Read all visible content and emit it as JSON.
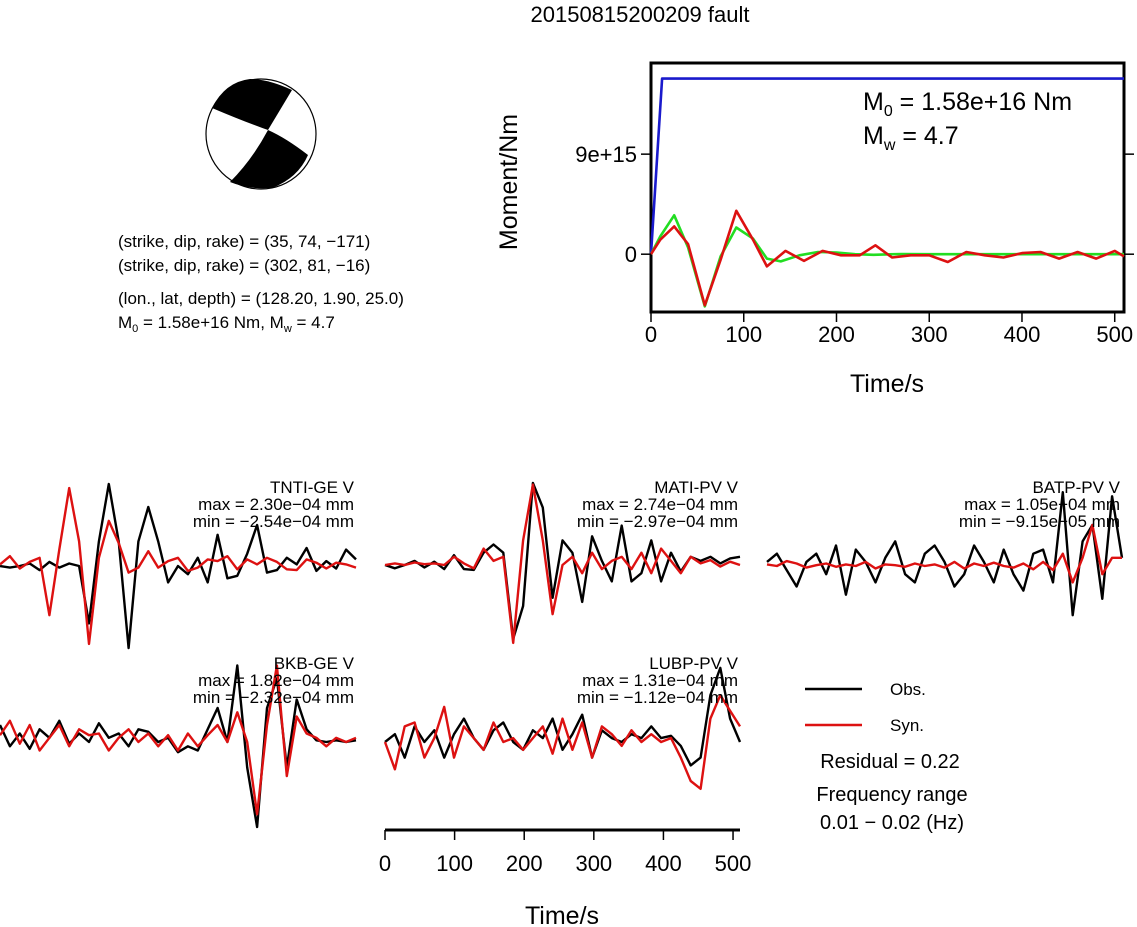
{
  "title": "20150815200209 fault",
  "colors": {
    "observed": "#000000",
    "synthetic": "#dd1111",
    "stf": "#1a1acc",
    "green": "#22dd22"
  },
  "mechanism": {
    "line1": "(strike, dip, rake) = (35, 74, −171)",
    "line2": "(strike, dip, rake) = (302, 81, −16)",
    "line3": "(lon., lat, depth) = (128.20, 1.90, 25.0)",
    "m0_prefix": "M",
    "m0_sub": "0",
    "m0_rest": " = 1.58e+16 Nm, M",
    "mw_sub": "w",
    "mw_rest": " = 4.7"
  },
  "moment_panel": {
    "m0_label": "M",
    "m0_sub": "0",
    "m0_value": " = 1.58e+16 Nm",
    "mw_label": "M",
    "mw_sub": "w",
    "mw_value": " = 4.7"
  },
  "legend": {
    "obs": "Obs.",
    "syn": "Syn.",
    "residual": "Residual = 0.22",
    "freq_title": "Frequency range",
    "freq_value": "0.01 − 0.02 (Hz)"
  },
  "chart_data": [
    {
      "type": "line",
      "name": "moment-rate",
      "ylabel": "Moment/Nm",
      "xlabel": "Time/s",
      "xlim": [
        0,
        510
      ],
      "ylim": [
        -5200000000000000,
        17200000000000000
      ],
      "xticks": [
        0,
        100,
        200,
        300,
        400,
        500
      ],
      "yticks": [
        {
          "v": 0,
          "label": "0"
        },
        {
          "v": 9000000000000000,
          "label": "9e+15"
        }
      ],
      "series": [
        {
          "color": "stf",
          "x": [
            0,
            12,
            510
          ],
          "y": [
            0,
            15800000000000000,
            15800000000000000
          ]
        },
        {
          "color": "green",
          "x": [
            0,
            10,
            25,
            40,
            58,
            75,
            92,
            110,
            125,
            140,
            160,
            180,
            200,
            220,
            240,
            270,
            300,
            350,
            400,
            450,
            510
          ],
          "y": [
            0,
            1600000000000000,
            3500000000000000,
            600000000000000,
            -4700000000000000,
            -200000000000000,
            2400000000000000,
            1400000000000000,
            -400000000000000,
            -650000000000000,
            -100000000000000,
            200000000000000,
            150000000000000,
            0,
            -50000000000000,
            20000000000000,
            0,
            0,
            0,
            0,
            0
          ]
        },
        {
          "color": "synthetic",
          "x": [
            0,
            10,
            25,
            40,
            58,
            75,
            92,
            110,
            125,
            145,
            165,
            185,
            205,
            225,
            242,
            260,
            280,
            300,
            320,
            340,
            360,
            380,
            400,
            420,
            440,
            460,
            480,
            500,
            510
          ],
          "y": [
            0,
            1300000000000000,
            2500000000000000,
            900000000000000,
            -4600000000000000,
            -500000000000000,
            3900000000000000,
            1300000000000000,
            -1100000000000000,
            300000000000000,
            -600000000000000,
            300000000000000,
            -100000000000000,
            -100000000000000,
            800000000000000,
            -300000000000000,
            -100000000000000,
            -100000000000000,
            -700000000000000,
            200000000000000,
            -100000000000000,
            -300000000000000,
            100000000000000,
            200000000000000,
            -400000000000000,
            200000000000000,
            -400000000000000,
            300000000000000,
            -200000000000000
          ]
        }
      ]
    },
    {
      "type": "line",
      "name": "waveforms",
      "xlabel": "Time/s",
      "xlim": [
        0,
        510
      ],
      "xticks": [
        0,
        100,
        200,
        300,
        400,
        500
      ],
      "stations": [
        {
          "name": "TNTI-GE V",
          "max": "max = 2.30e−04 mm",
          "min": "min = −2.54e−04 mm",
          "obs": [
            0,
            -0.02,
            0,
            0.03,
            -0.05,
            0.05,
            -0.02,
            0.03,
            0,
            -0.7,
            0.3,
            1.0,
            0.3,
            -1.0,
            0.3,
            0.72,
            0.3,
            -0.2,
            0.0,
            -0.1,
            0.1,
            -0.2,
            0.38,
            -0.15,
            -0.12,
            0.15,
            0.5,
            -0.08,
            -0.05,
            0.1,
            0.02,
            0.22,
            -0.06,
            0.06,
            -0.03,
            0.2,
            0.08
          ],
          "syn": [
            0.02,
            0.12,
            -0.03,
            0.05,
            0.1,
            -0.6,
            0.2,
            0.95,
            0.3,
            -0.95,
            0.1,
            0.55,
            0.28,
            -0.08,
            -0.02,
            0.18,
            -0.02,
            0.06,
            0.1,
            -0.06,
            -0.02,
            0.08,
            0.06,
            0.12,
            -0.04,
            0.08,
            0.02,
            0.1,
            0.05,
            -0.04,
            -0.05,
            0.08,
            0.04,
            -0.03,
            0.04,
            0.02,
            -0.02
          ]
        },
        {
          "name": "MATI-PV V",
          "max": "max = 2.74e−04 mm",
          "min": "min = −2.97e−04 mm",
          "obs": [
            0,
            -0.04,
            0,
            0.05,
            -0.03,
            0.04,
            -0.05,
            0.12,
            -0.05,
            -0.06,
            0.15,
            0.25,
            0.15,
            -0.9,
            -0.5,
            1.0,
            0.7,
            -0.4,
            0.3,
            0.15,
            -0.45,
            0.35,
            0.05,
            -0.2,
            0.48,
            -0.2,
            -0.1,
            0.3,
            -0.2,
            0.15,
            -0.08,
            0.1,
            0.05,
            0.1,
            0.02,
            0.08,
            0.1
          ],
          "syn": [
            0,
            0.02,
            0,
            0.03,
            0.01,
            0.02,
            0.0,
            0.1,
            0.02,
            -0.04,
            0.2,
            0.05,
            0.1,
            -0.95,
            0.3,
            0.98,
            0.3,
            -0.6,
            0.0,
            0.1,
            -0.1,
            0.15,
            -0.05,
            0.05,
            0.1,
            -0.05,
            0.15,
            -0.1,
            0.2,
            0.05,
            -0.1,
            0.1,
            0.02,
            0.06,
            -0.02,
            0.04,
            0.0
          ]
        },
        {
          "name": "BATP-PV V",
          "max": "max = 1.05e−04 mm",
          "min": "min = −9.15e−05 mm",
          "obs": [
            0.05,
            0.15,
            -0.05,
            -0.25,
            0.05,
            0.15,
            -0.1,
            0.25,
            -0.35,
            0.2,
            0.05,
            -0.2,
            0.1,
            0.3,
            -0.1,
            -0.2,
            0.15,
            0.25,
            0.05,
            -0.25,
            -0.1,
            0.25,
            0.05,
            -0.2,
            0.2,
            -0.1,
            -0.3,
            0.15,
            0.2,
            -0.2,
            0.9,
            -0.6,
            0.3,
            0.5,
            -0.4,
            0.85,
            0.1
          ],
          "syn": [
            0.02,
            0.0,
            0.06,
            0.03,
            -0.02,
            0.01,
            0.03,
            -0.01,
            0.02,
            0.0,
            0.05,
            -0.03,
            0.02,
            0.01,
            -0.01,
            0.03,
            0.0,
            0.02,
            -0.02,
            0.05,
            -0.03,
            0.03,
            0.0,
            0.04,
            0.0,
            -0.02,
            0.03,
            -0.04,
            0.05,
            -0.05,
            0.15,
            -0.2,
            0.1,
            0.5,
            -0.1,
            0.1,
            0.1
          ]
        },
        {
          "name": "BKB-GE V",
          "max": "max = 1.82e−04 mm",
          "min": "min = −2.32e−04 mm",
          "obs": [
            0.2,
            -0.05,
            0.1,
            -0.08,
            0.15,
            0.05,
            0.25,
            -0.02,
            0.1,
            0.0,
            0.22,
            0.05,
            0.1,
            -0.05,
            0.15,
            0.12,
            0.0,
            0.05,
            -0.12,
            -0.05,
            -0.1,
            0.15,
            0.4,
            0.0,
            0.9,
            -0.3,
            -1.0,
            0.4,
            0.75,
            -0.3,
            0.5,
            0.15,
            0.02,
            0.0,
            0.02,
            0.0,
            0.02
          ],
          "syn": [
            0.08,
            0.25,
            -0.02,
            0.2,
            -0.1,
            0.05,
            0.2,
            -0.05,
            0.15,
            0.08,
            0.1,
            -0.1,
            0.05,
            0.15,
            0.0,
            0.1,
            -0.05,
            0.08,
            -0.1,
            0.1,
            -0.05,
            0.08,
            0.2,
            0.0,
            0.35,
            0.0,
            -0.85,
            0.2,
            0.9,
            -0.4,
            0.3,
            0.1,
            0.05,
            -0.05,
            0.05,
            0.0,
            0.05
          ]
        },
        {
          "name": "LUBP-PV V",
          "max": "max = 1.31e−04 mm",
          "min": "min = −1.12e−04 mm",
          "obs": [
            0.0,
            0.1,
            -0.2,
            0.2,
            0.0,
            0.15,
            -0.2,
            0.1,
            0.3,
            0.05,
            -0.1,
            0.15,
            0.25,
            0.0,
            -0.1,
            0.15,
            0.05,
            0.3,
            -0.1,
            0.1,
            0.35,
            -0.2,
            0.15,
            0.05,
            0.0,
            0.1,
            0.05,
            0.2,
            0.05,
            0.08,
            -0.05,
            -0.3,
            -0.2,
            0.6,
            0.95,
            0.3,
            0.0
          ],
          "syn": [
            0.0,
            -0.35,
            0.2,
            0.25,
            -0.2,
            0.05,
            0.45,
            -0.2,
            0.2,
            0.05,
            -0.1,
            0.25,
            0.0,
            0.05,
            -0.1,
            0.05,
            0.2,
            -0.15,
            0.3,
            -0.1,
            0.25,
            -0.2,
            0.2,
            0.1,
            -0.05,
            0.15,
            0.0,
            0.1,
            0.0,
            0.05,
            -0.2,
            -0.5,
            -0.6,
            0.3,
            0.6,
            0.4,
            0.2
          ]
        }
      ]
    }
  ]
}
